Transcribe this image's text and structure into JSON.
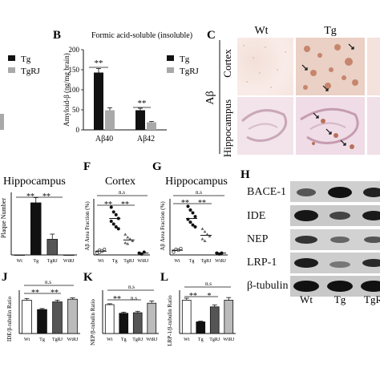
{
  "panels": {
    "A": {
      "legend": [
        "Tg",
        "TgRJ"
      ]
    },
    "B": {
      "letter": "B",
      "title": "Formic acid-soluble (insoluble)",
      "ylabel": "Amyloid-β (ng/mg brain)",
      "yticks": [
        "0",
        "50",
        "100",
        "150",
        "200"
      ],
      "legend": [
        "Tg",
        "TgRJ"
      ],
      "sig": [
        "**",
        "**"
      ]
    },
    "C": {
      "letter": "C",
      "col_labels": [
        "Wt",
        "Tg"
      ],
      "row_group": "Aβ",
      "row_labels": [
        "Cortex",
        "Hippocampus"
      ]
    },
    "E": {
      "title": "Hippocampus",
      "ylabel": "Plaque Number",
      "sig": [
        "**",
        "**"
      ]
    },
    "F": {
      "letter": "F",
      "title": "Cortex",
      "ylabel": "Aβ Area Fraction (%)",
      "sig": [
        "**",
        "**",
        "n.s"
      ]
    },
    "G": {
      "letter": "G",
      "title": "Hippocampus",
      "ylabel": "Aβ Area Fraction (%)",
      "sig": [
        "**",
        "**",
        "n.s"
      ]
    },
    "H": {
      "letter": "H",
      "rows": [
        "BACE-1",
        "IDE",
        "NEP",
        "LRP-1",
        "β-tubulin"
      ],
      "lanes": [
        "Wt",
        "Tg",
        "TgR"
      ]
    },
    "J": {
      "letter": "J",
      "ylabel": "IDE/β-tubulin Ratio",
      "sig": [
        "**",
        "**",
        "n.s"
      ]
    },
    "K": {
      "letter": "K",
      "ylabel": "NEP/β-tubulin Ratio",
      "sig": [
        "**",
        "n.s",
        "n.s"
      ]
    },
    "L": {
      "letter": "L",
      "ylabel": "LRP-1/β-tubulin Ratio",
      "sig": [
        "**",
        "*",
        "n.s"
      ]
    }
  },
  "chart_data": [
    {
      "panel": "B",
      "type": "bar",
      "categories": [
        "Aβ40",
        "Aβ42"
      ],
      "series": [
        {
          "name": "Tg",
          "values": [
            143,
            49
          ]
        },
        {
          "name": "TgRJ",
          "values": [
            49,
            19
          ]
        }
      ],
      "errors": [
        [
          10,
          5
        ],
        [
          6,
          2
        ]
      ],
      "ylim": [
        0,
        200
      ],
      "colors": [
        "#111111",
        "#a9a9a9"
      ]
    },
    {
      "panel": "E",
      "type": "bar",
      "categories": [
        "Wt",
        "Tg",
        "TgRJ",
        "WtRJ"
      ],
      "values": [
        0,
        10,
        3,
        0
      ],
      "errors": [
        0,
        1,
        1,
        0
      ],
      "ylim": [
        0,
        12
      ],
      "colors": [
        "#ffffff",
        "#111111",
        "#555555",
        "#bbbbbb"
      ]
    },
    {
      "panel": "F",
      "type": "scatter",
      "categories": [
        "Wt",
        "Tg",
        "TgRJ",
        "WtRJ"
      ],
      "means": [
        0.4,
        3.9,
        1.6,
        0.2
      ],
      "points": [
        [
          0.3,
          0.5,
          0.4,
          0.6,
          0.2,
          0.3
        ],
        [
          5.1,
          4.6,
          4.3,
          3.9,
          3.6,
          3.3,
          3.0,
          2.8
        ],
        [
          2.2,
          1.9,
          1.7,
          1.5,
          1.3,
          1.2
        ],
        [
          0.2,
          0.1,
          0.3
        ]
      ],
      "ylim": [
        0,
        6
      ]
    },
    {
      "panel": "G",
      "type": "scatter",
      "categories": [
        "Wt",
        "Tg",
        "TgRJ",
        "WtRJ"
      ],
      "means": [
        0.5,
        3.9,
        2.1,
        0.2
      ],
      "points": [
        [
          0.4,
          0.6,
          0.5,
          0.7,
          0.3
        ],
        [
          5.2,
          4.8,
          4.5,
          4.1,
          3.8,
          3.5,
          3.2,
          3.0
        ],
        [
          2.8,
          2.5,
          2.2,
          2.0,
          1.7,
          1.5
        ],
        [
          0.2,
          0.1,
          0.2
        ]
      ],
      "ylim": [
        0,
        6
      ]
    },
    {
      "panel": "J",
      "type": "bar",
      "categories": [
        "Wt",
        "Tg",
        "TgRJ",
        "WtRJ"
      ],
      "values": [
        1.0,
        0.72,
        0.95,
        1.03
      ],
      "errors": [
        0.05,
        0.03,
        0.05,
        0.04
      ],
      "ylim": [
        0,
        1.3
      ],
      "colors": [
        "#ffffff",
        "#111111",
        "#555555",
        "#bbbbbb"
      ]
    },
    {
      "panel": "K",
      "type": "bar",
      "categories": [
        "Wt",
        "Tg",
        "TgRJ",
        "WtRJ"
      ],
      "values": [
        1.0,
        0.7,
        0.72,
        1.05
      ],
      "errors": [
        0.03,
        0.04,
        0.05,
        0.08
      ],
      "ylim": [
        0,
        1.5
      ],
      "colors": [
        "#ffffff",
        "#111111",
        "#555555",
        "#bbbbbb"
      ]
    },
    {
      "panel": "L",
      "type": "bar",
      "categories": [
        "Wt",
        "Tg",
        "TgRJ",
        "WtRJ"
      ],
      "values": [
        1.0,
        0.35,
        0.8,
        1.0
      ],
      "errors": [
        0.06,
        0.02,
        0.06,
        0.08
      ],
      "ylim": [
        0,
        1.3
      ],
      "colors": [
        "#ffffff",
        "#111111",
        "#555555",
        "#bbbbbb"
      ]
    }
  ]
}
